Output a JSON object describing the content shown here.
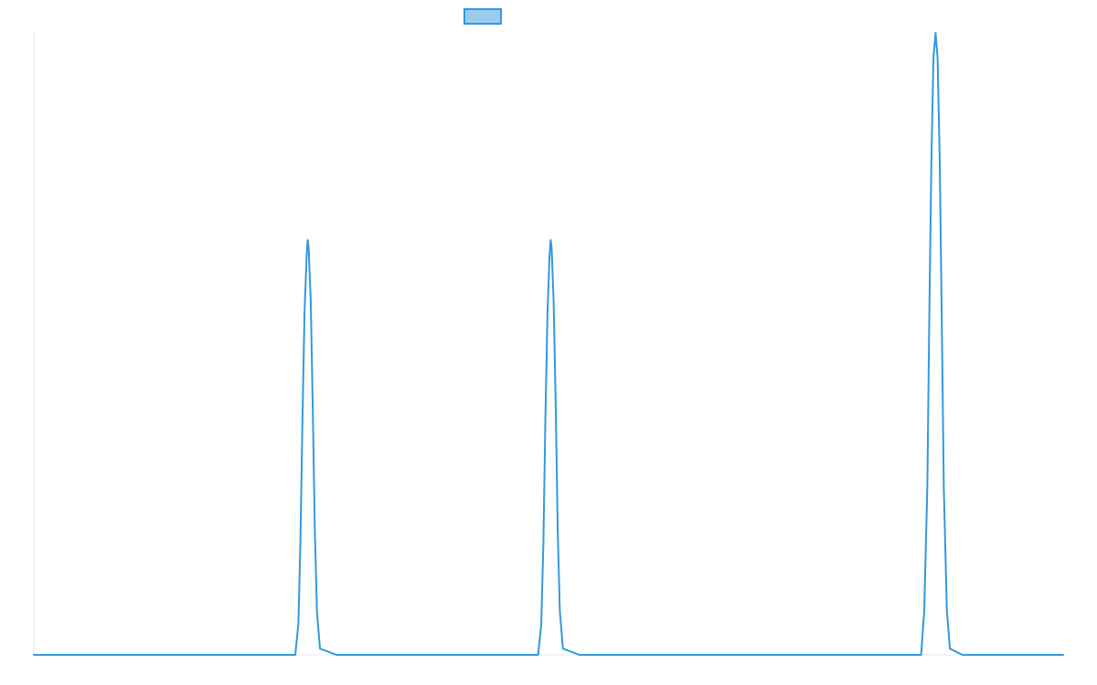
{
  "chart_data": {
    "type": "line",
    "title": "",
    "xlabel": "",
    "ylabel": "",
    "xlim": [
      0,
      1000
    ],
    "ylim": [
      0,
      1
    ],
    "grid": false,
    "legend": {
      "position": "top-center",
      "show_label": false
    },
    "series": [
      {
        "color": "#3399dd",
        "fill": "#99ccee",
        "points": [
          [
            0,
            0
          ],
          [
            254,
            0
          ],
          [
            257,
            0.05
          ],
          [
            259,
            0.18
          ],
          [
            261,
            0.38
          ],
          [
            263,
            0.55
          ],
          [
            265,
            0.64
          ],
          [
            266,
            0.667
          ],
          [
            267,
            0.655
          ],
          [
            269,
            0.57
          ],
          [
            271,
            0.4
          ],
          [
            273,
            0.2
          ],
          [
            275,
            0.07
          ],
          [
            278,
            0.01
          ],
          [
            294,
            0
          ],
          [
            490,
            0
          ],
          [
            493,
            0.05
          ],
          [
            495,
            0.18
          ],
          [
            497,
            0.38
          ],
          [
            499,
            0.55
          ],
          [
            501,
            0.64
          ],
          [
            502,
            0.667
          ],
          [
            503,
            0.655
          ],
          [
            505,
            0.57
          ],
          [
            507,
            0.4
          ],
          [
            509,
            0.2
          ],
          [
            511,
            0.07
          ],
          [
            514,
            0.01
          ],
          [
            530,
            0
          ],
          [
            862,
            0
          ],
          [
            865,
            0.07
          ],
          [
            868,
            0.27
          ],
          [
            870,
            0.55
          ],
          [
            872,
            0.8
          ],
          [
            874,
            0.96
          ],
          [
            876,
            1.0
          ],
          [
            878,
            0.96
          ],
          [
            880,
            0.8
          ],
          [
            882,
            0.55
          ],
          [
            884,
            0.27
          ],
          [
            887,
            0.07
          ],
          [
            890,
            0.01
          ],
          [
            902,
            0
          ],
          [
            1000,
            0
          ]
        ]
      }
    ]
  }
}
